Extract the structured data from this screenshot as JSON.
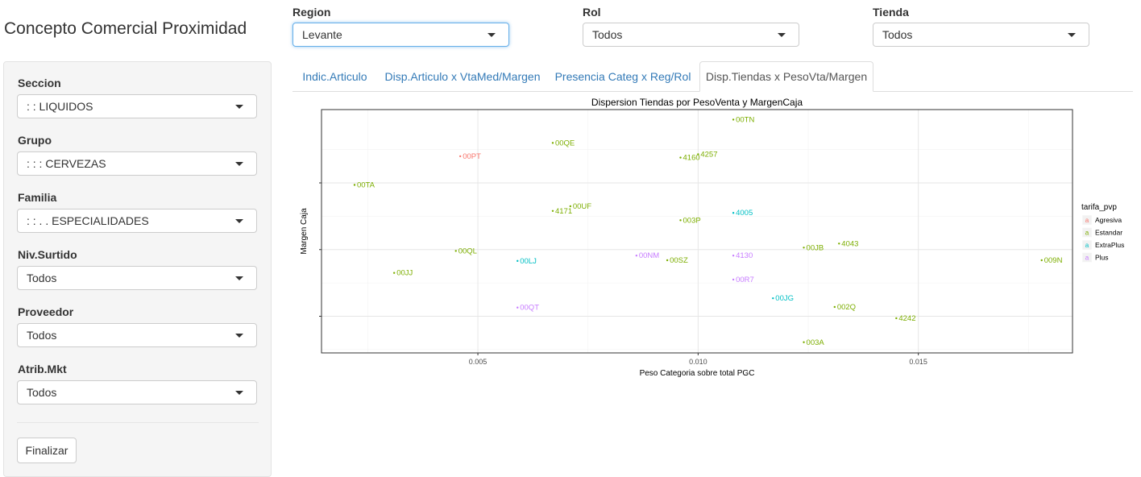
{
  "app": {
    "title": "Concepto Comercial Proximidad"
  },
  "filters": {
    "region": {
      "label": "Region",
      "value": "Levante"
    },
    "rol": {
      "label": "Rol",
      "value": "Todos"
    },
    "tienda": {
      "label": "Tienda",
      "value": "Todos"
    }
  },
  "sidebar": {
    "seccion": {
      "label": "Seccion",
      "value": ": : LIQUIDOS"
    },
    "grupo": {
      "label": "Grupo",
      "value": ": : : CERVEZAS"
    },
    "familia": {
      "label": "Familia",
      "value": ": : . . ESPECIALIDADES"
    },
    "niv_surtido": {
      "label": "Niv.Surtido",
      "value": "Todos"
    },
    "proveedor": {
      "label": "Proveedor",
      "value": "Todos"
    },
    "atrib_mkt": {
      "label": "Atrib.Mkt",
      "value": "Todos"
    },
    "finalizar_label": "Finalizar"
  },
  "tabs": [
    {
      "label": "Indic.Articulo",
      "active": false
    },
    {
      "label": "Disp.Articulo x VtaMed/Margen",
      "active": false
    },
    {
      "label": "Presencia Categ x Reg/Rol",
      "active": false
    },
    {
      "label": "Disp.Tiendas x PesoVta/Margen",
      "active": true
    }
  ],
  "colors": {
    "Agresiva": "#F8766D",
    "Estandar": "#7CAE00",
    "ExtraPlus": "#00BFC4",
    "Plus": "#C77CFF"
  },
  "chart_data": {
    "type": "scatter",
    "title": "Dispersion Tiendas por PesoVenta y MargenCaja",
    "xlabel": "Peso Categoria sobre total PGC",
    "ylabel": "Margen Caja",
    "xlim": [
      0.00145,
      0.0185
    ],
    "ylim": [
      -0.05,
      3.6
    ],
    "x_ticks": [
      0.005,
      0.01,
      0.015
    ],
    "x_tick_labels": [
      "0.005",
      "0.010",
      "0.015"
    ],
    "y_ticks": [
      0.5,
      1.5,
      2.5
    ],
    "y_tick_labels": [
      "",
      "",
      ""
    ],
    "grid": true,
    "legend": {
      "title": "tarifa_pvp",
      "position": "right",
      "key_glyph": "a",
      "entries": [
        "Agresiva",
        "Estandar",
        "ExtraPlus",
        "Plus"
      ]
    },
    "points": [
      {
        "label": "00TN",
        "x": 0.0108,
        "y": 3.45,
        "tarifa": "Estandar"
      },
      {
        "label": "00QE",
        "x": 0.0067,
        "y": 3.1,
        "tarifa": "Estandar"
      },
      {
        "label": "00PT",
        "x": 0.0046,
        "y": 2.9,
        "tarifa": "Agresiva"
      },
      {
        "label": "4257",
        "x": 0.01,
        "y": 2.93,
        "tarifa": "Estandar"
      },
      {
        "label": "4160",
        "x": 0.0096,
        "y": 2.88,
        "tarifa": "Estandar"
      },
      {
        "label": "00TA",
        "x": 0.0022,
        "y": 2.47,
        "tarifa": "Estandar"
      },
      {
        "label": "00UF",
        "x": 0.0071,
        "y": 2.15,
        "tarifa": "Estandar"
      },
      {
        "label": "4171",
        "x": 0.0067,
        "y": 2.08,
        "tarifa": "Estandar"
      },
      {
        "label": "4005",
        "x": 0.0108,
        "y": 2.05,
        "tarifa": "ExtraPlus"
      },
      {
        "label": "003P",
        "x": 0.0096,
        "y": 1.94,
        "tarifa": "Estandar"
      },
      {
        "label": "4043",
        "x": 0.0132,
        "y": 1.59,
        "tarifa": "Estandar"
      },
      {
        "label": "00JB",
        "x": 0.0124,
        "y": 1.53,
        "tarifa": "Estandar"
      },
      {
        "label": "00QL",
        "x": 0.0045,
        "y": 1.48,
        "tarifa": "Estandar"
      },
      {
        "label": "00NM",
        "x": 0.0086,
        "y": 1.41,
        "tarifa": "Plus"
      },
      {
        "label": "4130",
        "x": 0.0108,
        "y": 1.41,
        "tarifa": "Plus"
      },
      {
        "label": "00SZ",
        "x": 0.0093,
        "y": 1.34,
        "tarifa": "Estandar"
      },
      {
        "label": "00LJ",
        "x": 0.0059,
        "y": 1.33,
        "tarifa": "ExtraPlus"
      },
      {
        "label": "009N",
        "x": 0.0178,
        "y": 1.34,
        "tarifa": "Estandar"
      },
      {
        "label": "00JJ",
        "x": 0.0031,
        "y": 1.15,
        "tarifa": "Estandar"
      },
      {
        "label": "00R7",
        "x": 0.0108,
        "y": 1.05,
        "tarifa": "Plus"
      },
      {
        "label": "00JG",
        "x": 0.0117,
        "y": 0.77,
        "tarifa": "ExtraPlus"
      },
      {
        "label": "00QT",
        "x": 0.0059,
        "y": 0.63,
        "tarifa": "Plus"
      },
      {
        "label": "002Q",
        "x": 0.0131,
        "y": 0.64,
        "tarifa": "Estandar"
      },
      {
        "label": "4242",
        "x": 0.0145,
        "y": 0.47,
        "tarifa": "Estandar"
      },
      {
        "label": "003A",
        "x": 0.0124,
        "y": 0.11,
        "tarifa": "Estandar"
      }
    ]
  }
}
